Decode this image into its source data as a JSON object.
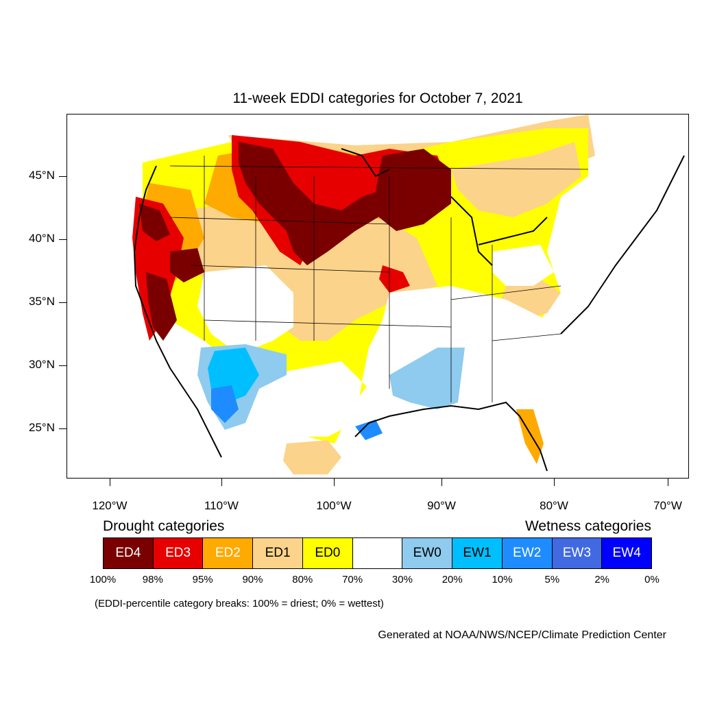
{
  "title": "11-week EDDI categories for October 7, 2021",
  "lat_labels": [
    "45°N",
    "40°N",
    "35°N",
    "30°N",
    "25°N"
  ],
  "lon_labels": [
    "120°W",
    "110°W",
    "100°W",
    "90°W",
    "80°W",
    "70°W"
  ],
  "legend": {
    "drought_heading": "Drought categories",
    "wetness_heading": "Wetness categories",
    "categories": [
      {
        "label": "ED4",
        "color": "#7a0000",
        "text_color": "#ffffff"
      },
      {
        "label": "ED3",
        "color": "#e60000",
        "text_color": "#ffffff"
      },
      {
        "label": "ED2",
        "color": "#ffaa00",
        "text_color": "#ffffff"
      },
      {
        "label": "ED1",
        "color": "#fcd38a",
        "text_color": "#000000"
      },
      {
        "label": "ED0",
        "color": "#ffff00",
        "text_color": "#000000"
      },
      {
        "label": "",
        "color": "#ffffff",
        "text_color": "#000000"
      },
      {
        "label": "EW0",
        "color": "#8ecbee",
        "text_color": "#000000"
      },
      {
        "label": "EW1",
        "color": "#00bfff",
        "text_color": "#000000"
      },
      {
        "label": "EW2",
        "color": "#1e8cff",
        "text_color": "#ffffff"
      },
      {
        "label": "EW3",
        "color": "#4169e1",
        "text_color": "#ffffff"
      },
      {
        "label": "EW4",
        "color": "#0000ff",
        "text_color": "#ffffff"
      }
    ],
    "percent_breaks": [
      "100%",
      "98%",
      "95%",
      "90%",
      "80%",
      "70%",
      "30%",
      "20%",
      "10%",
      "5%",
      "2%",
      "0%"
    ]
  },
  "note": "(EDDI-percentile category breaks: 100% = driest; 0% = wettest)",
  "credit": "Generated at NOAA/NWS/NCEP/Climate Prediction Center"
}
